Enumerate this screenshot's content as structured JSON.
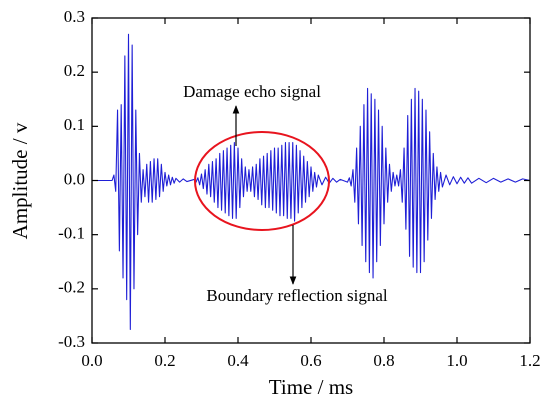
{
  "chart_data": {
    "type": "line",
    "xlabel": "Time / ms",
    "ylabel": "Amplitude / v",
    "annotations": [
      "Damage echo signal",
      "Boundary reflection signal"
    ],
    "color": "#1f1fd6",
    "xlim": [
      0,
      1.2
    ],
    "ylim": [
      -0.3,
      0.3
    ],
    "xticks": [
      {
        "value": 0,
        "label": "0.0"
      },
      0.2,
      0.4,
      0.6,
      0.8,
      {
        "value": 1,
        "label": "1.0"
      },
      1.2
    ],
    "yticks": [
      -0.3,
      -0.2,
      -0.1,
      {
        "value": 0,
        "label": "0.0"
      },
      0.1,
      0.2,
      0.3
    ],
    "x": [
      0,
      0.055,
      0.06,
      0.065,
      0.07,
      0.075,
      0.08,
      0.085,
      0.09,
      0.095,
      0.1,
      0.105,
      0.11,
      0.115,
      0.12,
      0.125,
      0.13,
      0.135,
      0.14,
      0.145,
      0.15,
      0.155,
      0.16,
      0.165,
      0.17,
      0.175,
      0.18,
      0.185,
      0.19,
      0.195,
      0.2,
      0.205,
      0.21,
      0.215,
      0.22,
      0.225,
      0.23,
      0.24,
      0.25,
      0.26,
      0.28,
      0.285,
      0.29,
      0.295,
      0.3,
      0.305,
      0.31,
      0.315,
      0.32,
      0.325,
      0.33,
      0.335,
      0.34,
      0.345,
      0.35,
      0.355,
      0.36,
      0.365,
      0.37,
      0.375,
      0.38,
      0.385,
      0.39,
      0.395,
      0.4,
      0.405,
      0.41,
      0.415,
      0.42,
      0.425,
      0.43,
      0.435,
      0.44,
      0.445,
      0.45,
      0.455,
      0.46,
      0.465,
      0.47,
      0.475,
      0.48,
      0.485,
      0.49,
      0.495,
      0.5,
      0.505,
      0.51,
      0.515,
      0.52,
      0.525,
      0.53,
      0.535,
      0.54,
      0.545,
      0.55,
      0.555,
      0.56,
      0.565,
      0.57,
      0.575,
      0.58,
      0.585,
      0.59,
      0.595,
      0.6,
      0.605,
      0.61,
      0.615,
      0.62,
      0.63,
      0.64,
      0.65,
      0.66,
      0.67,
      0.68,
      0.7,
      0.705,
      0.71,
      0.715,
      0.72,
      0.725,
      0.73,
      0.735,
      0.74,
      0.745,
      0.75,
      0.755,
      0.76,
      0.765,
      0.77,
      0.775,
      0.78,
      0.785,
      0.79,
      0.795,
      0.8,
      0.805,
      0.81,
      0.815,
      0.82,
      0.825,
      0.83,
      0.835,
      0.84,
      0.845,
      0.85,
      0.855,
      0.86,
      0.865,
      0.87,
      0.875,
      0.88,
      0.885,
      0.89,
      0.895,
      0.9,
      0.905,
      0.91,
      0.915,
      0.92,
      0.925,
      0.93,
      0.935,
      0.94,
      0.945,
      0.95,
      0.955,
      0.96,
      0.97,
      0.98,
      0.99,
      1.0,
      1.01,
      1.02,
      1.03,
      1.04,
      1.06,
      1.08,
      1.1,
      1.12,
      1.14,
      1.16,
      1.18,
      1.2
    ],
    "values": [
      0,
      0,
      0.01,
      -0.02,
      0.13,
      -0.13,
      0.14,
      -0.18,
      0.23,
      -0.22,
      0.27,
      -0.275,
      0.25,
      -0.2,
      0.13,
      -0.1,
      0.05,
      -0.04,
      0.02,
      -0.03,
      0.03,
      -0.04,
      0.035,
      -0.04,
      0.04,
      -0.035,
      0.04,
      -0.03,
      0.03,
      -0.02,
      0.015,
      -0.01,
      0.01,
      -0.008,
      0.006,
      -0.005,
      0.004,
      -0.003,
      0.003,
      -0.002,
      0.002,
      -0.003,
      0.005,
      -0.008,
      0.012,
      -0.015,
      0.02,
      -0.025,
      0.03,
      -0.03,
      0.035,
      -0.04,
      0.04,
      -0.05,
      0.05,
      -0.055,
      0.055,
      -0.06,
      0.06,
      -0.065,
      0.065,
      -0.07,
      0.07,
      -0.07,
      0.06,
      -0.05,
      0.04,
      -0.03,
      0.025,
      -0.02,
      0.02,
      -0.02,
      0.025,
      -0.03,
      0.03,
      -0.035,
      0.04,
      -0.045,
      0.045,
      -0.05,
      0.05,
      -0.05,
      0.055,
      -0.055,
      0.06,
      -0.06,
      0.06,
      -0.065,
      0.065,
      -0.065,
      0.07,
      -0.07,
      0.07,
      -0.07,
      0.07,
      -0.075,
      0.065,
      -0.06,
      0.055,
      -0.05,
      0.045,
      -0.04,
      0.035,
      -0.03,
      0.025,
      -0.02,
      0.015,
      -0.012,
      0.01,
      -0.008,
      0.006,
      -0.005,
      0.004,
      -0.003,
      0.002,
      -0.003,
      0.005,
      -0.01,
      0.02,
      -0.04,
      0.06,
      -0.08,
      0.1,
      -0.12,
      0.14,
      -0.15,
      0.17,
      -0.17,
      0.16,
      -0.18,
      0.15,
      -0.15,
      0.13,
      -0.12,
      0.1,
      -0.08,
      0.06,
      -0.04,
      0.03,
      -0.02,
      0.015,
      -0.01,
      0.01,
      -0.01,
      0.02,
      -0.04,
      0.06,
      -0.09,
      0.12,
      -0.14,
      0.15,
      -0.16,
      0.17,
      -0.17,
      0.165,
      -0.17,
      0.15,
      -0.15,
      0.13,
      -0.11,
      0.09,
      -0.07,
      0.05,
      -0.035,
      0.025,
      -0.02,
      0.015,
      -0.012,
      0.01,
      -0.008,
      0.007,
      -0.006,
      0.006,
      -0.005,
      0.005,
      -0.005,
      0.004,
      -0.004,
      0.004,
      -0.003,
      0.003,
      -0.003,
      0.003,
      0
    ]
  }
}
